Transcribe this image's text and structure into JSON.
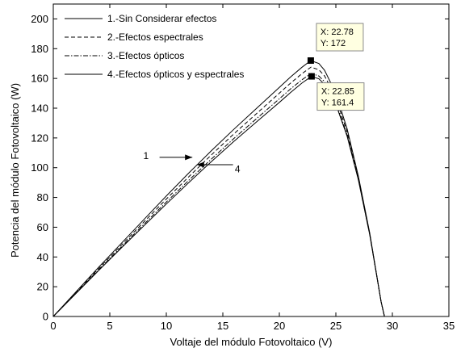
{
  "chart_data": {
    "type": "line",
    "xlabel": "Voltaje del módulo Fotovoltaico (V)",
    "ylabel": "Potencia del módulo Fotovoltaico (W)",
    "xlim": [
      0,
      35
    ],
    "ylim": [
      0,
      210
    ],
    "xticks": [
      0,
      5,
      10,
      15,
      20,
      25,
      30,
      35
    ],
    "yticks": [
      0,
      20,
      40,
      60,
      80,
      100,
      120,
      140,
      160,
      180,
      200
    ],
    "grid": false,
    "legend_position": "top-left",
    "series": [
      {
        "name": "1.-Sin Considerar efectos",
        "style": "solid",
        "x": [
          0,
          2,
          4,
          6,
          8,
          10,
          12,
          14,
          16,
          18,
          20,
          21,
          22,
          22.78,
          23.5,
          24,
          25,
          26,
          27,
          28,
          28.5,
          29,
          29.3
        ],
        "y": [
          0,
          16.5,
          33,
          49,
          65,
          81,
          96.5,
          111.5,
          126,
          140,
          154,
          161,
          167.5,
          172,
          170,
          165.5,
          150,
          126,
          94,
          56,
          33,
          10,
          0
        ]
      },
      {
        "name": "2.-Efectos espectrales",
        "style": "dashed",
        "x": [
          0,
          2,
          4,
          6,
          8,
          10,
          12,
          14,
          16,
          18,
          20,
          21,
          22,
          22.8,
          23.5,
          24,
          25,
          26,
          27,
          28,
          28.5,
          29,
          29.3
        ],
        "y": [
          0,
          16.1,
          32.1,
          47.8,
          63.4,
          78.9,
          94,
          108.7,
          122.9,
          136.5,
          150.1,
          156.9,
          163.2,
          167.6,
          165.8,
          161.7,
          147.1,
          124,
          93,
          55.5,
          32.8,
          10,
          0
        ]
      },
      {
        "name": "3.-Efectos ópticos",
        "style": "dashdot",
        "x": [
          0,
          2,
          4,
          6,
          8,
          10,
          12,
          14,
          16,
          18,
          20,
          21,
          22,
          22.82,
          23.5,
          24,
          25,
          26,
          27,
          28,
          28.5,
          29,
          29.3
        ],
        "y": [
          0,
          15.7,
          31.3,
          46.6,
          61.8,
          76.9,
          91.6,
          105.9,
          119.8,
          133.1,
          146.3,
          153,
          159.1,
          163.4,
          161.6,
          157.8,
          144.1,
          122,
          92,
          55,
          32.6,
          10,
          0
        ]
      },
      {
        "name": "4.-Efectos ópticos y espectrales",
        "style": "solid",
        "x": [
          0,
          2,
          4,
          6,
          8,
          10,
          12,
          14,
          16,
          18,
          20,
          21,
          22,
          22.85,
          23.5,
          24,
          25,
          26,
          27,
          28,
          28.5,
          29,
          29.3
        ],
        "y": [
          0,
          15.4,
          30.8,
          45.9,
          60.8,
          75.6,
          90.1,
          104.2,
          117.8,
          130.9,
          143.9,
          150.6,
          156.9,
          161.4,
          159.7,
          156,
          142.6,
          121,
          91.5,
          54.8,
          32.5,
          10,
          0
        ]
      }
    ],
    "datatips": [
      {
        "x": 22.78,
        "y": 172,
        "x_text": "X: 22.78",
        "y_text": "Y: 172",
        "position": "above"
      },
      {
        "x": 22.85,
        "y": 161.4,
        "x_text": "X: 22.85",
        "y_text": "Y: 161.4",
        "position": "below"
      }
    ],
    "annotations": [
      {
        "text": "1",
        "text_x": 8.2,
        "text_y": 108,
        "arrow_from": [
          9.4,
          107
        ],
        "arrow_to": [
          12.3,
          107
        ],
        "direction": "right"
      },
      {
        "text": "4",
        "text_x": 16.3,
        "text_y": 99,
        "arrow_from": [
          15.9,
          102
        ],
        "arrow_to": [
          12.7,
          102
        ],
        "direction": "left"
      }
    ]
  }
}
